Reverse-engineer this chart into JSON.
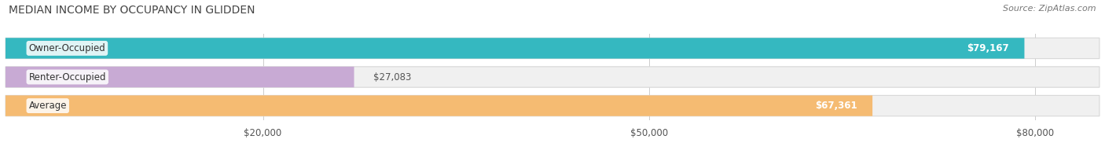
{
  "title": "MEDIAN INCOME BY OCCUPANCY IN GLIDDEN",
  "source": "Source: ZipAtlas.com",
  "categories": [
    "Owner-Occupied",
    "Renter-Occupied",
    "Average"
  ],
  "values": [
    79167,
    27083,
    67361
  ],
  "labels": [
    "$79,167",
    "$27,083",
    "$67,361"
  ],
  "bar_colors": [
    "#35b8c0",
    "#c8aad4",
    "#f5bb72"
  ],
  "bar_bg_color": "#f0f0f0",
  "bar_border_color": "#d8d8d8",
  "xlim": [
    0,
    85000
  ],
  "xticks": [
    20000,
    50000,
    80000
  ],
  "xticklabels": [
    "$20,000",
    "$50,000",
    "$80,000"
  ],
  "figsize": [
    14.06,
    1.96
  ],
  "dpi": 100,
  "title_fontsize": 10,
  "source_fontsize": 8,
  "label_fontsize": 8.5,
  "tick_fontsize": 8.5,
  "bg_color": "#ffffff",
  "bar_height": 0.72,
  "rounding_size": 0.36,
  "n_bars": 3
}
